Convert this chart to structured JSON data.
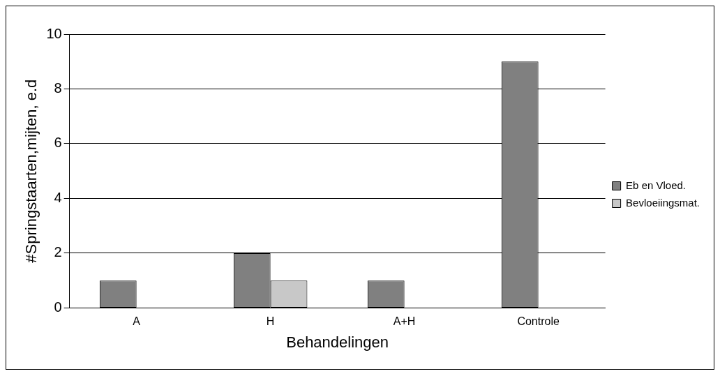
{
  "chart_data": {
    "type": "bar",
    "xlabel": "Behandelingen",
    "ylabel": "#Springstaarten,mijten, e.d",
    "categories": [
      "A",
      "H",
      "A+H",
      "Controle"
    ],
    "series": [
      {
        "name": "Eb en Vloed.",
        "color": "#808080",
        "values": [
          1,
          2,
          1,
          9
        ]
      },
      {
        "name": "Bevloeiingsmat.",
        "color": "#c8c8c8",
        "values": [
          0,
          1,
          0,
          0
        ]
      }
    ],
    "ylim": [
      0,
      10
    ],
    "yticks": [
      0,
      2,
      4,
      6,
      8,
      10
    ],
    "grid": "y",
    "legend": "right"
  }
}
